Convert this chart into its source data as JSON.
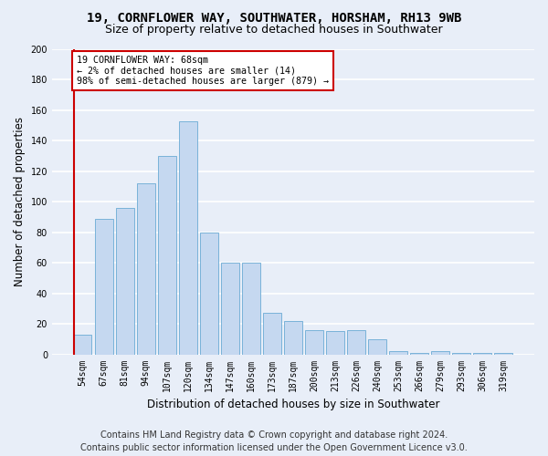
{
  "title": "19, CORNFLOWER WAY, SOUTHWATER, HORSHAM, RH13 9WB",
  "subtitle": "Size of property relative to detached houses in Southwater",
  "xlabel": "Distribution of detached houses by size in Southwater",
  "ylabel": "Number of detached properties",
  "categories": [
    "54sqm",
    "67sqm",
    "81sqm",
    "94sqm",
    "107sqm",
    "120sqm",
    "134sqm",
    "147sqm",
    "160sqm",
    "173sqm",
    "187sqm",
    "200sqm",
    "213sqm",
    "226sqm",
    "240sqm",
    "253sqm",
    "266sqm",
    "279sqm",
    "293sqm",
    "306sqm",
    "319sqm"
  ],
  "values": [
    13,
    89,
    96,
    112,
    130,
    153,
    80,
    60,
    60,
    27,
    22,
    16,
    15,
    16,
    10,
    2,
    1,
    2,
    1,
    1,
    1
  ],
  "bar_color": "#c5d8f0",
  "bar_edge_color": "#6aaad4",
  "annotation_text": "19 CORNFLOWER WAY: 68sqm\n← 2% of detached houses are smaller (14)\n98% of semi-detached houses are larger (879) →",
  "annotation_box_color": "#ffffff",
  "annotation_box_edge": "#cc0000",
  "vline_color": "#cc0000",
  "ylim": [
    0,
    200
  ],
  "yticks": [
    0,
    20,
    40,
    60,
    80,
    100,
    120,
    140,
    160,
    180,
    200
  ],
  "footer_line1": "Contains HM Land Registry data © Crown copyright and database right 2024.",
  "footer_line2": "Contains public sector information licensed under the Open Government Licence v3.0.",
  "bg_color": "#e8eef8",
  "plot_bg_color": "#e8eef8",
  "grid_color": "#ffffff",
  "title_fontsize": 10,
  "subtitle_fontsize": 9,
  "axis_label_fontsize": 8.5,
  "tick_fontsize": 7,
  "footer_fontsize": 7,
  "vline_x_bar_index": 0
}
